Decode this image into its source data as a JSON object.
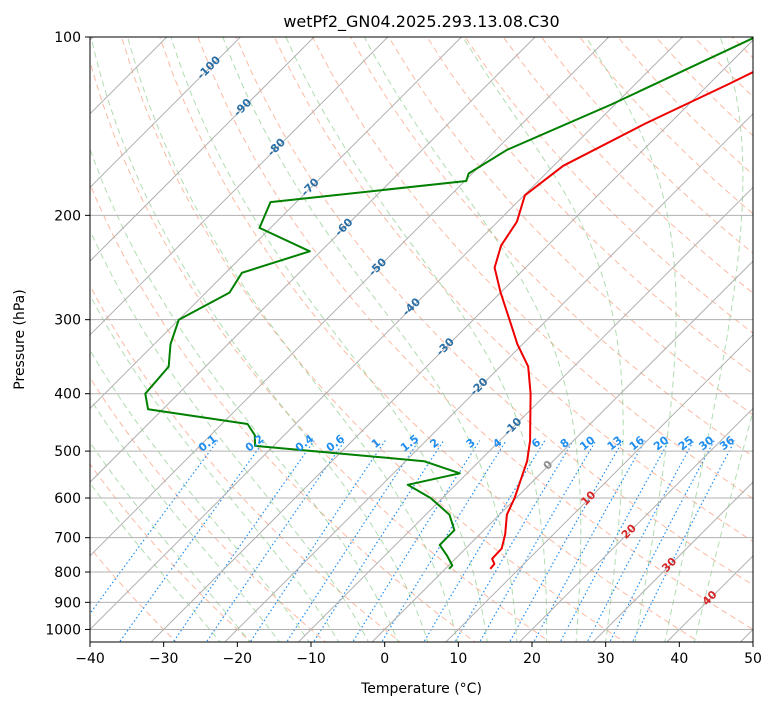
{
  "chart_data": {
    "type": "line",
    "title": "wetPf2_GN04.2025.293.13.08.C30",
    "xlabel": "Temperature (°C)",
    "ylabel": "Pressure (hPa)",
    "xlim": [
      -40,
      50
    ],
    "ylim": [
      1050,
      100
    ],
    "y_scale": "log",
    "x_ticks": [
      "−40",
      "−30",
      "−20",
      "−10",
      "0",
      "10",
      "20",
      "30",
      "40",
      "50"
    ],
    "y_ticks": [
      "100",
      "200",
      "300",
      "400",
      "500",
      "600",
      "700",
      "800",
      "900",
      "1000"
    ],
    "grid": true,
    "isotherm_labels": [
      "-100",
      "-90",
      "-80",
      "-70",
      "-60",
      "-50",
      "-40",
      "-30",
      "-20",
      "-10",
      "0",
      "10",
      "20",
      "30",
      "40"
    ],
    "mixing_ratio_labels": [
      "0.1",
      "0.2",
      "0.4",
      "0.6",
      "1",
      "1.5",
      "2",
      "3",
      "4",
      "6",
      "8",
      "10",
      "13",
      "16",
      "20",
      "25",
      "30",
      "36"
    ],
    "colors": {
      "temperature": "#ee0000",
      "dewpoint": "#008000",
      "isotherm_label": "#2a6ea6",
      "isotherm_label_warm": "#d62728",
      "isotherm_zero": "#8c8c8c",
      "mixing_ratio": "#1f8ef0",
      "dry_adiabat": "#fa8c66",
      "moist_adiabat": "#6fbf6f",
      "grid": "#b0b0b0"
    },
    "series": [
      {
        "label": "temperature",
        "pressure": [
          100,
          120,
          140,
          165,
          185,
          205,
          225,
          245,
          270,
          300,
          330,
          360,
          400,
          440,
          480,
          520,
          560,
          600,
          640,
          690,
          730,
          760,
          775,
          790
        ],
        "temperature": [
          -20.8,
          -27.3,
          -33.3,
          -38.7,
          -39.9,
          -37.4,
          -36.3,
          -34.2,
          -30.0,
          -25.1,
          -20.7,
          -16.2,
          -12.2,
          -8.9,
          -5.9,
          -3.5,
          -1.8,
          -0.2,
          1.0,
          3.4,
          4.9,
          5.0,
          6.0,
          6.1
        ]
      },
      {
        "label": "dewpoint",
        "pressure": [
          100,
          130,
          155,
          170,
          175,
          190,
          210,
          230,
          250,
          270,
          300,
          330,
          360,
          400,
          425,
          450,
          470,
          490,
          520,
          545,
          570,
          600,
          640,
          680,
          720,
          750,
          780,
          790
        ],
        "dewpoint": [
          -30.1,
          -40.5,
          -48.5,
          -50.5,
          -49.8,
          -73.5,
          -71.5,
          -61.5,
          -67.8,
          -66.8,
          -70.0,
          -67.8,
          -65.0,
          -64.5,
          -62.0,
          -46.5,
          -44.0,
          -42.5,
          -17.5,
          -11.0,
          -16.5,
          -11.6,
          -6.8,
          -4.0,
          -4.0,
          -1.6,
          0.5,
          0.5
        ]
      }
    ]
  }
}
